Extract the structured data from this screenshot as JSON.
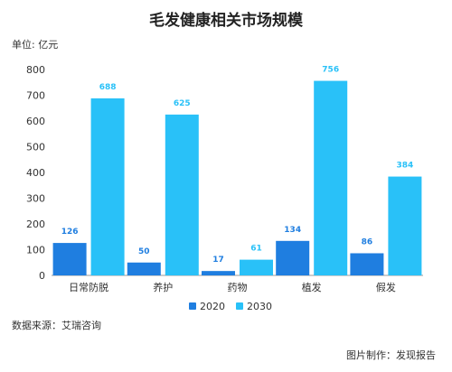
{
  "chart_data": {
    "type": "bar",
    "title": "毛发健康相关市场规模",
    "unit_label": "单位: 亿元",
    "categories": [
      "日常防脱",
      "养护",
      "药物",
      "植发",
      "假发"
    ],
    "series": [
      {
        "name": "2020",
        "values": [
          126,
          50,
          17,
          134,
          86
        ],
        "color": "#1f7ee0"
      },
      {
        "name": "2030",
        "values": [
          688,
          625,
          61,
          756,
          384
        ],
        "color": "#29c1f8"
      }
    ],
    "yticks": [
      0,
      100,
      200,
      300,
      400,
      500,
      600,
      700,
      800
    ],
    "ylim": [
      0,
      800
    ],
    "grid": false,
    "legend_position": "bottom-center"
  },
  "footer": {
    "source": "数据来源：艾瑞咨询",
    "credit": "图片制作：发现报告"
  }
}
